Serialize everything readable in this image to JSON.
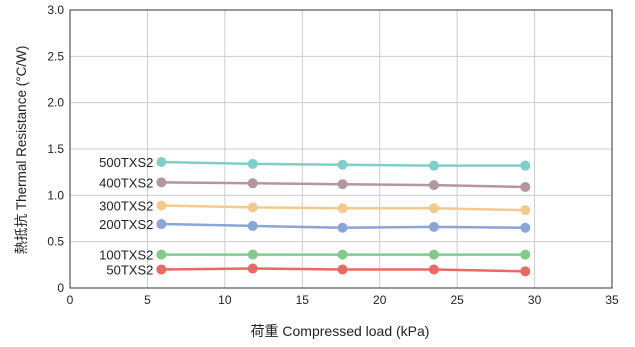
{
  "chart_data": {
    "type": "line",
    "xlabel": "荷重  Compressed load (kPa)",
    "ylabel": "熱抵抗  Thermal Resistance (°C/W)",
    "xlim": [
      0,
      35
    ],
    "ylim": [
      0,
      3.0
    ],
    "xticks": [
      "0",
      "5",
      "10",
      "15",
      "20",
      "25",
      "30",
      "35"
    ],
    "yticks": [
      "0",
      "0.5",
      "1.0",
      "1.5",
      "2.0",
      "2.5",
      "3.0"
    ],
    "grid": true,
    "legend": "inline-left",
    "x": [
      5.9,
      11.8,
      17.6,
      23.5,
      29.4
    ],
    "series": [
      {
        "name": "500TXS2",
        "color": "#7ecfcc",
        "values": [
          1.36,
          1.34,
          1.33,
          1.32,
          1.32
        ]
      },
      {
        "name": "400TXS2",
        "color": "#b5959f",
        "values": [
          1.14,
          1.13,
          1.12,
          1.11,
          1.09
        ]
      },
      {
        "name": "300TXS2",
        "color": "#f3c98e",
        "values": [
          0.89,
          0.87,
          0.86,
          0.86,
          0.84
        ]
      },
      {
        "name": "200TXS2",
        "color": "#8aa6d6",
        "values": [
          0.69,
          0.67,
          0.65,
          0.66,
          0.65
        ]
      },
      {
        "name": "100TXS2",
        "color": "#84c98c",
        "values": [
          0.36,
          0.36,
          0.36,
          0.36,
          0.36
        ]
      },
      {
        "name": "50TXS2",
        "color": "#e86a64",
        "values": [
          0.2,
          0.21,
          0.2,
          0.2,
          0.18
        ]
      }
    ]
  }
}
